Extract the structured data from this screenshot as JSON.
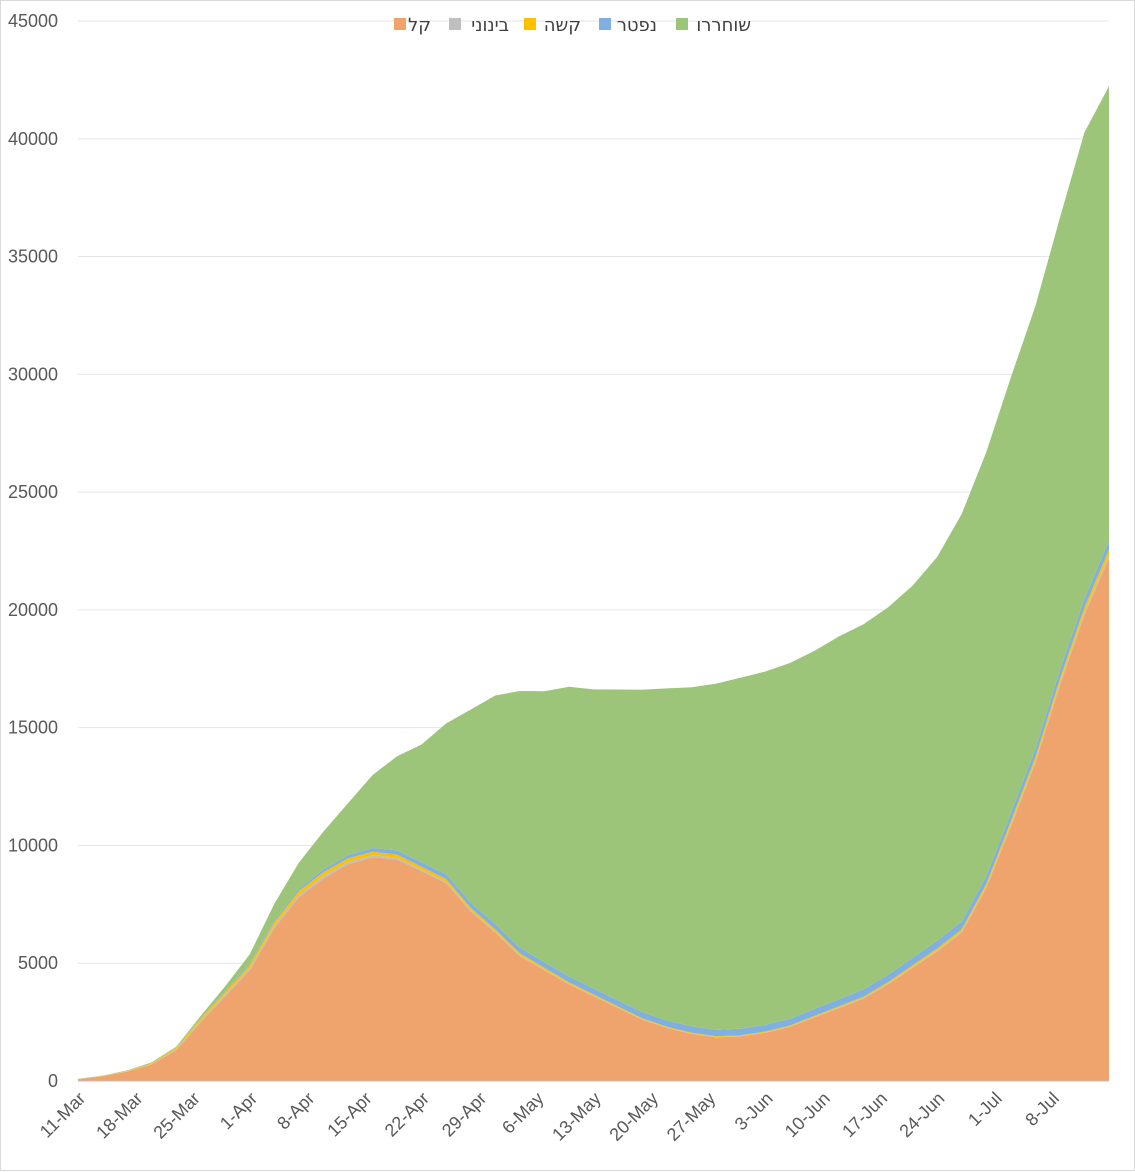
{
  "chart_data": {
    "type": "area",
    "stacked": true,
    "title": "",
    "xlabel": "",
    "ylabel": "",
    "ylim": [
      0,
      45000
    ],
    "yticks": [
      0,
      5000,
      10000,
      15000,
      20000,
      25000,
      30000,
      35000,
      40000,
      45000
    ],
    "grid": true,
    "legend_position": "top",
    "x_tick_labels": [
      "11-Mar",
      "18-Mar",
      "25-Mar",
      "1-Apr",
      "8-Apr",
      "15-Apr",
      "22-Apr",
      "29-Apr",
      "6-May",
      "13-May",
      "20-May",
      "27-May",
      "3-Jun",
      "10-Jun",
      "17-Jun",
      "24-Jun",
      "1-Jul",
      "8-Jul"
    ],
    "x": [
      "11-Mar",
      "14-Mar",
      "17-Mar",
      "20-Mar",
      "23-Mar",
      "26-Mar",
      "29-Mar",
      "1-Apr",
      "4-Apr",
      "7-Apr",
      "10-Apr",
      "13-Apr",
      "16-Apr",
      "19-Apr",
      "22-Apr",
      "25-Apr",
      "28-Apr",
      "1-May",
      "4-May",
      "7-May",
      "10-May",
      "13-May",
      "16-May",
      "19-May",
      "22-May",
      "25-May",
      "28-May",
      "31-May",
      "3-Jun",
      "6-Jun",
      "9-Jun",
      "12-Jun",
      "15-Jun",
      "18-Jun",
      "21-Jun",
      "24-Jun",
      "27-Jun",
      "30-Jun",
      "3-Jul",
      "6-Jul",
      "9-Jul",
      "12-Jul",
      "15-Jul"
    ],
    "series": [
      {
        "name": "קל",
        "color": "#f0a46d",
        "values": [
          80,
          200,
          400,
          700,
          1300,
          2500,
          3600,
          4700,
          6500,
          7800,
          8600,
          9200,
          9500,
          9400,
          8900,
          8400,
          7200,
          6300,
          5300,
          4700,
          4100,
          3600,
          3100,
          2600,
          2250,
          2000,
          1850,
          1900,
          2050,
          2300,
          2700,
          3100,
          3500,
          4100,
          4800,
          5500,
          6300,
          8200,
          10800,
          13500,
          16800,
          19800,
          22200
        ]
      },
      {
        "name": "בינוני",
        "color": "#bfbfbf",
        "values": [
          0,
          5,
          10,
          20,
          40,
          60,
          80,
          90,
          100,
          110,
          110,
          100,
          90,
          80,
          70,
          60,
          50,
          45,
          40,
          35,
          30,
          25,
          20,
          18,
          15,
          12,
          12,
          12,
          15,
          18,
          22,
          25,
          30,
          35,
          40,
          45,
          50,
          60,
          80,
          90,
          100,
          110,
          120
        ]
      },
      {
        "name": "קשה",
        "color": "#ffc000",
        "values": [
          0,
          10,
          20,
          40,
          60,
          90,
          110,
          130,
          150,
          160,
          160,
          150,
          140,
          130,
          120,
          110,
          100,
          90,
          80,
          70,
          60,
          50,
          45,
          40,
          38,
          36,
          34,
          34,
          36,
          38,
          42,
          48,
          55,
          65,
          75,
          85,
          95,
          110,
          140,
          160,
          180,
          200,
          230
        ]
      },
      {
        "name": "נפטר",
        "color": "#7fb0e0",
        "values": [
          0,
          0,
          0,
          0,
          5,
          15,
          40,
          60,
          80,
          100,
          120,
          140,
          160,
          180,
          200,
          210,
          220,
          230,
          235,
          240,
          245,
          250,
          255,
          260,
          265,
          270,
          275,
          280,
          285,
          290,
          295,
          300,
          305,
          310,
          315,
          320,
          325,
          330,
          340,
          350,
          360,
          370,
          380
        ]
      },
      {
        "name": "שוחררו",
        "color": "#9cc57a",
        "values": [
          10,
          15,
          20,
          30,
          50,
          100,
          200,
          400,
          700,
          1100,
          1600,
          2200,
          3100,
          4000,
          5000,
          6400,
          8200,
          9700,
          10900,
          11500,
          12300,
          12700,
          13200,
          13700,
          14100,
          14400,
          14700,
          14900,
          15000,
          15100,
          15200,
          15400,
          15500,
          15600,
          15800,
          16300,
          17300,
          18000,
          18500,
          18800,
          19200,
          19800,
          19300
        ]
      }
    ]
  }
}
